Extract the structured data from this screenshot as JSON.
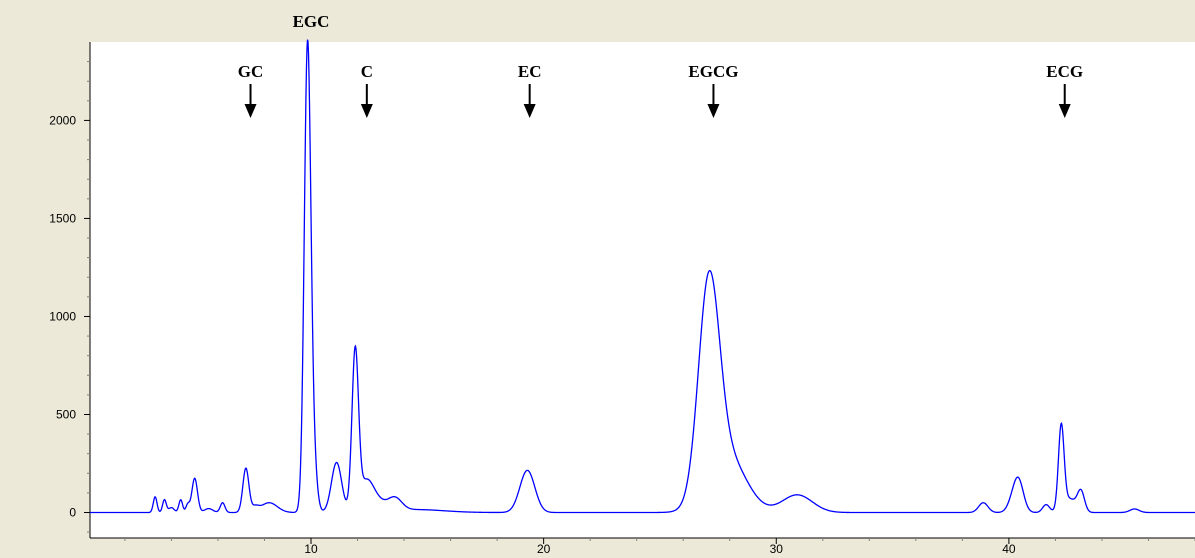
{
  "chart_data": {
    "type": "line",
    "title": "",
    "xlabel": "",
    "ylabel": "",
    "xlim": [
      0.5,
      48.0
    ],
    "ylim": [
      -130,
      2400
    ],
    "x_ticks": [
      10,
      20,
      30,
      40
    ],
    "y_ticks": [
      0,
      500,
      1000,
      1500,
      2000
    ],
    "x_tick_labels": [
      "10",
      "20",
      "30",
      "40"
    ],
    "y_tick_labels": [
      "0",
      "500",
      "1000",
      "1500",
      "2000"
    ],
    "grid": false,
    "line_color": "#0000ff",
    "baseline": 0,
    "peaks": [
      {
        "x": 3.3,
        "y": 80,
        "w": 0.08
      },
      {
        "x": 3.7,
        "y": 65,
        "w": 0.08
      },
      {
        "x": 4.0,
        "y": 25,
        "w": 0.12
      },
      {
        "x": 4.4,
        "y": 65,
        "w": 0.08
      },
      {
        "x": 4.7,
        "y": 40,
        "w": 0.08
      },
      {
        "x": 5.0,
        "y": 175,
        "w": 0.12
      },
      {
        "x": 5.6,
        "y": 20,
        "w": 0.18
      },
      {
        "x": 6.2,
        "y": 50,
        "w": 0.1
      },
      {
        "x": 7.2,
        "y": 225,
        "w": 0.13
      },
      {
        "x": 7.6,
        "y": 25,
        "w": 0.15
      },
      {
        "x": 8.2,
        "y": 50,
        "w": 0.35
      },
      {
        "x": 9.85,
        "y": 2350,
        "w": 0.14
      },
      {
        "x": 10.1,
        "y": 250,
        "w": 0.15
      },
      {
        "x": 11.1,
        "y": 255,
        "w": 0.22
      },
      {
        "x": 11.9,
        "y": 800,
        "w": 0.14
      },
      {
        "x": 12.35,
        "y": 140,
        "w": 0.3
      },
      {
        "x": 12.8,
        "y": 55,
        "w": 0.35
      },
      {
        "x": 13.6,
        "y": 65,
        "w": 0.3
      },
      {
        "x": 14.5,
        "y": 15,
        "w": 1.2
      },
      {
        "x": 19.3,
        "y": 215,
        "w": 0.32
      },
      {
        "x": 27.1,
        "y": 1060,
        "w": 0.45
      },
      {
        "x": 27.9,
        "y": 280,
        "w": 0.8
      },
      {
        "x": 30.9,
        "y": 90,
        "w": 0.65
      },
      {
        "x": 38.9,
        "y": 50,
        "w": 0.2
      },
      {
        "x": 40.4,
        "y": 170,
        "w": 0.22
      },
      {
        "x": 40.1,
        "y": 30,
        "w": 0.2
      },
      {
        "x": 41.6,
        "y": 40,
        "w": 0.15
      },
      {
        "x": 42.25,
        "y": 420,
        "w": 0.12
      },
      {
        "x": 42.6,
        "y": 70,
        "w": 0.3
      },
      {
        "x": 43.1,
        "y": 100,
        "w": 0.15
      },
      {
        "x": 45.4,
        "y": 18,
        "w": 0.2
      }
    ],
    "annotations": [
      {
        "label": "GC",
        "x": 7.4,
        "arrow": true
      },
      {
        "label": "EGC",
        "x": 10.0,
        "arrow": false
      },
      {
        "label": "C",
        "x": 12.4,
        "arrow": true
      },
      {
        "label": "EC",
        "x": 19.4,
        "arrow": true
      },
      {
        "label": "EGCG",
        "x": 27.3,
        "arrow": true
      },
      {
        "label": "ECG",
        "x": 42.4,
        "arrow": true
      }
    ]
  }
}
